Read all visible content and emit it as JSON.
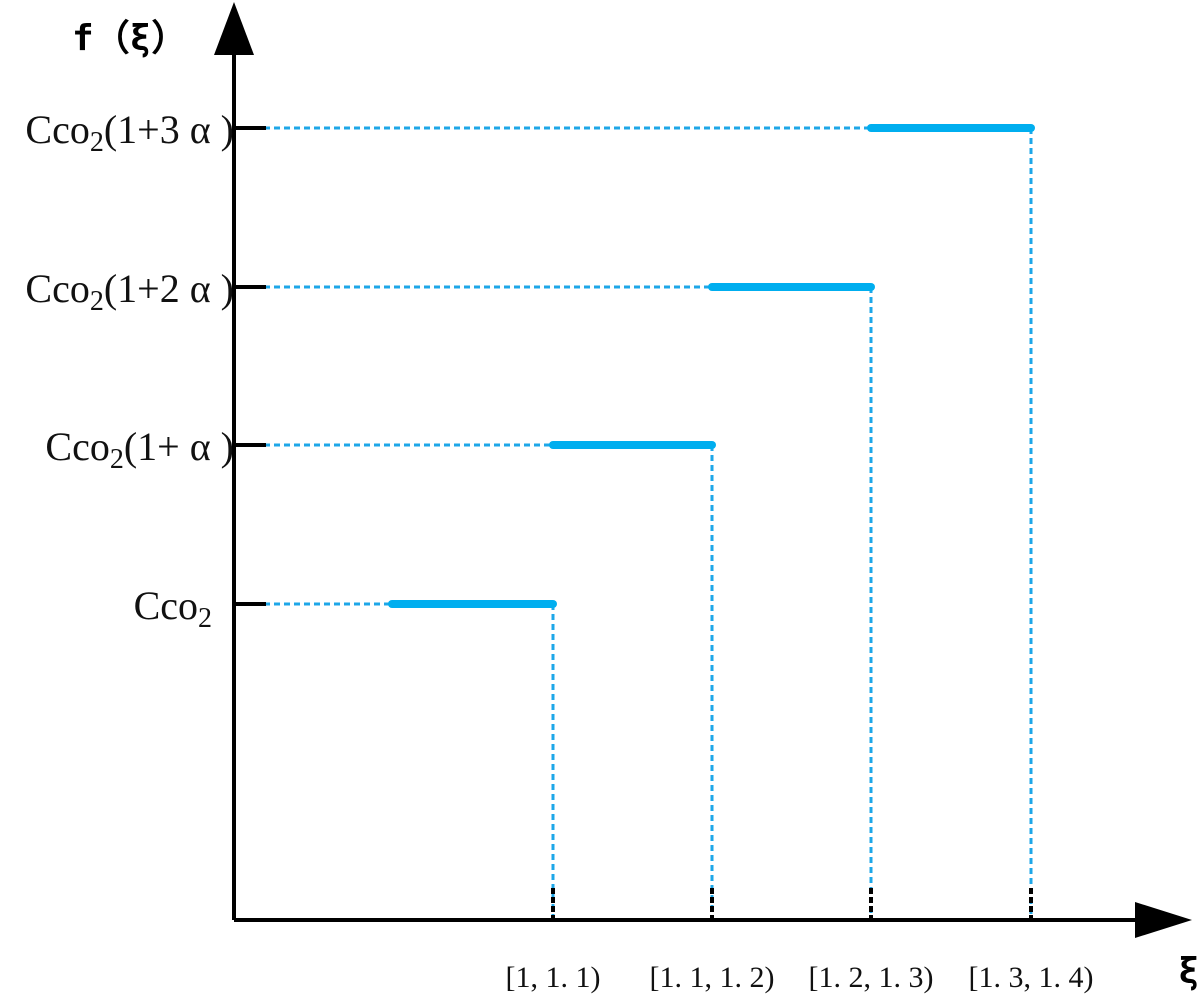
{
  "chart_data": {
    "type": "line",
    "title": "",
    "ylabel": "f（ξ）",
    "xlabel": "ξ",
    "x_intervals": [
      "[1, 1. 1)",
      "[1. 1, 1. 2)",
      "[1. 2, 1. 3)",
      "[1. 3, 1. 4)"
    ],
    "y_levels": [
      {
        "base": "Cco",
        "sub": "2",
        "suffix": ""
      },
      {
        "base": "Cco",
        "sub": "2",
        "suffix": "(1+ α )"
      },
      {
        "base": "Cco",
        "sub": "2",
        "suffix": "(1+2 α )"
      },
      {
        "base": "Cco",
        "sub": "2",
        "suffix": "(1+3 α )"
      }
    ],
    "series": [
      {
        "steps": [
          {
            "x_interval": 0,
            "level": 0
          },
          {
            "x_interval": 1,
            "level": 1
          },
          {
            "x_interval": 2,
            "level": 2
          },
          {
            "x_interval": 3,
            "level": 3
          }
        ]
      }
    ],
    "step_color": "#00aeef",
    "guide_color": "#1ea7e8",
    "axis_color": "#000000",
    "grid": false
  }
}
